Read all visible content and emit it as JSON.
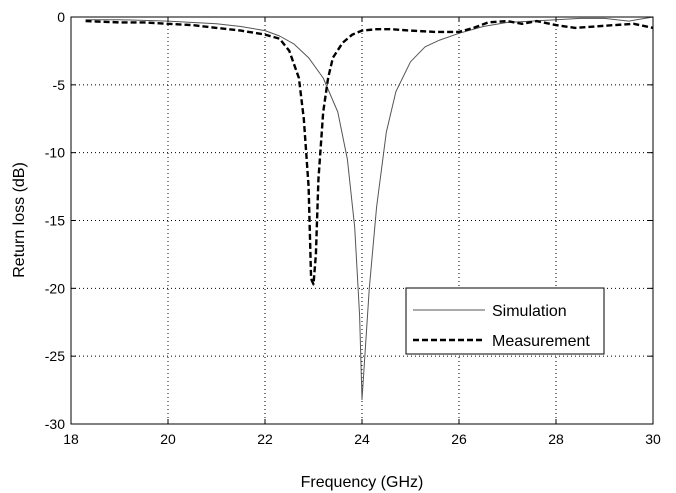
{
  "chart_data": {
    "type": "line",
    "title": "",
    "xlabel": "Frequency (GHz)",
    "ylabel": "Return loss (dB)",
    "xlim": [
      18,
      30
    ],
    "ylim": [
      -30,
      0
    ],
    "xticks": [
      18,
      20,
      22,
      24,
      26,
      28,
      30
    ],
    "yticks": [
      0,
      -5,
      -10,
      -15,
      -20,
      -25,
      -30
    ],
    "x_tick_labels": [
      "18",
      "20",
      "22",
      "24",
      "26",
      "28",
      "30"
    ],
    "y_tick_labels": [
      "0",
      "-5",
      "-10",
      "-15",
      "-20",
      "-25",
      "-30"
    ],
    "grid": true,
    "legend_position": "lower-right",
    "series": [
      {
        "name": "Simulation",
        "style": "solid",
        "color": "#555555",
        "x": [
          18.3,
          19,
          20,
          21,
          21.5,
          22,
          22.3,
          22.6,
          22.9,
          23.2,
          23.5,
          23.7,
          23.85,
          23.95,
          24.0,
          24.05,
          24.15,
          24.3,
          24.5,
          24.7,
          25.0,
          25.3,
          25.6,
          26.0,
          26.5,
          27.0,
          27.5,
          28.0,
          28.5,
          29.0,
          29.5,
          30.0
        ],
        "y": [
          -0.2,
          -0.2,
          -0.3,
          -0.5,
          -0.7,
          -1.0,
          -1.4,
          -2.0,
          -3.0,
          -4.5,
          -7.0,
          -10.5,
          -15.5,
          -22.0,
          -28.2,
          -25.5,
          -20.0,
          -14.0,
          -8.5,
          -5.5,
          -3.3,
          -2.2,
          -1.7,
          -1.2,
          -0.7,
          -0.4,
          -0.3,
          -0.2,
          -0.1,
          -0.1,
          -0.3,
          0.0
        ]
      },
      {
        "name": "Measurement",
        "style": "dashed",
        "color": "#000000",
        "x": [
          18.3,
          19.0,
          19.5,
          20.0,
          20.5,
          21.0,
          21.5,
          22.0,
          22.3,
          22.5,
          22.7,
          22.8,
          22.9,
          22.95,
          23.0,
          23.05,
          23.1,
          23.2,
          23.3,
          23.4,
          23.6,
          23.8,
          24.0,
          24.3,
          24.6,
          25.0,
          25.5,
          26.0,
          26.3,
          26.6,
          27.0,
          27.3,
          27.6,
          28.0,
          28.4,
          28.8,
          29.2,
          29.6,
          30.0
        ],
        "y": [
          -0.3,
          -0.4,
          -0.4,
          -0.5,
          -0.6,
          -0.8,
          -1.0,
          -1.3,
          -1.6,
          -2.5,
          -4.5,
          -7.5,
          -12.5,
          -19.3,
          -19.7,
          -17.5,
          -12.0,
          -7.0,
          -4.5,
          -3.0,
          -1.9,
          -1.3,
          -1.0,
          -0.9,
          -0.9,
          -1.0,
          -1.1,
          -1.1,
          -0.8,
          -0.4,
          -0.3,
          -0.5,
          -0.3,
          -0.6,
          -0.8,
          -0.7,
          -0.6,
          -0.5,
          -0.8
        ]
      }
    ]
  }
}
